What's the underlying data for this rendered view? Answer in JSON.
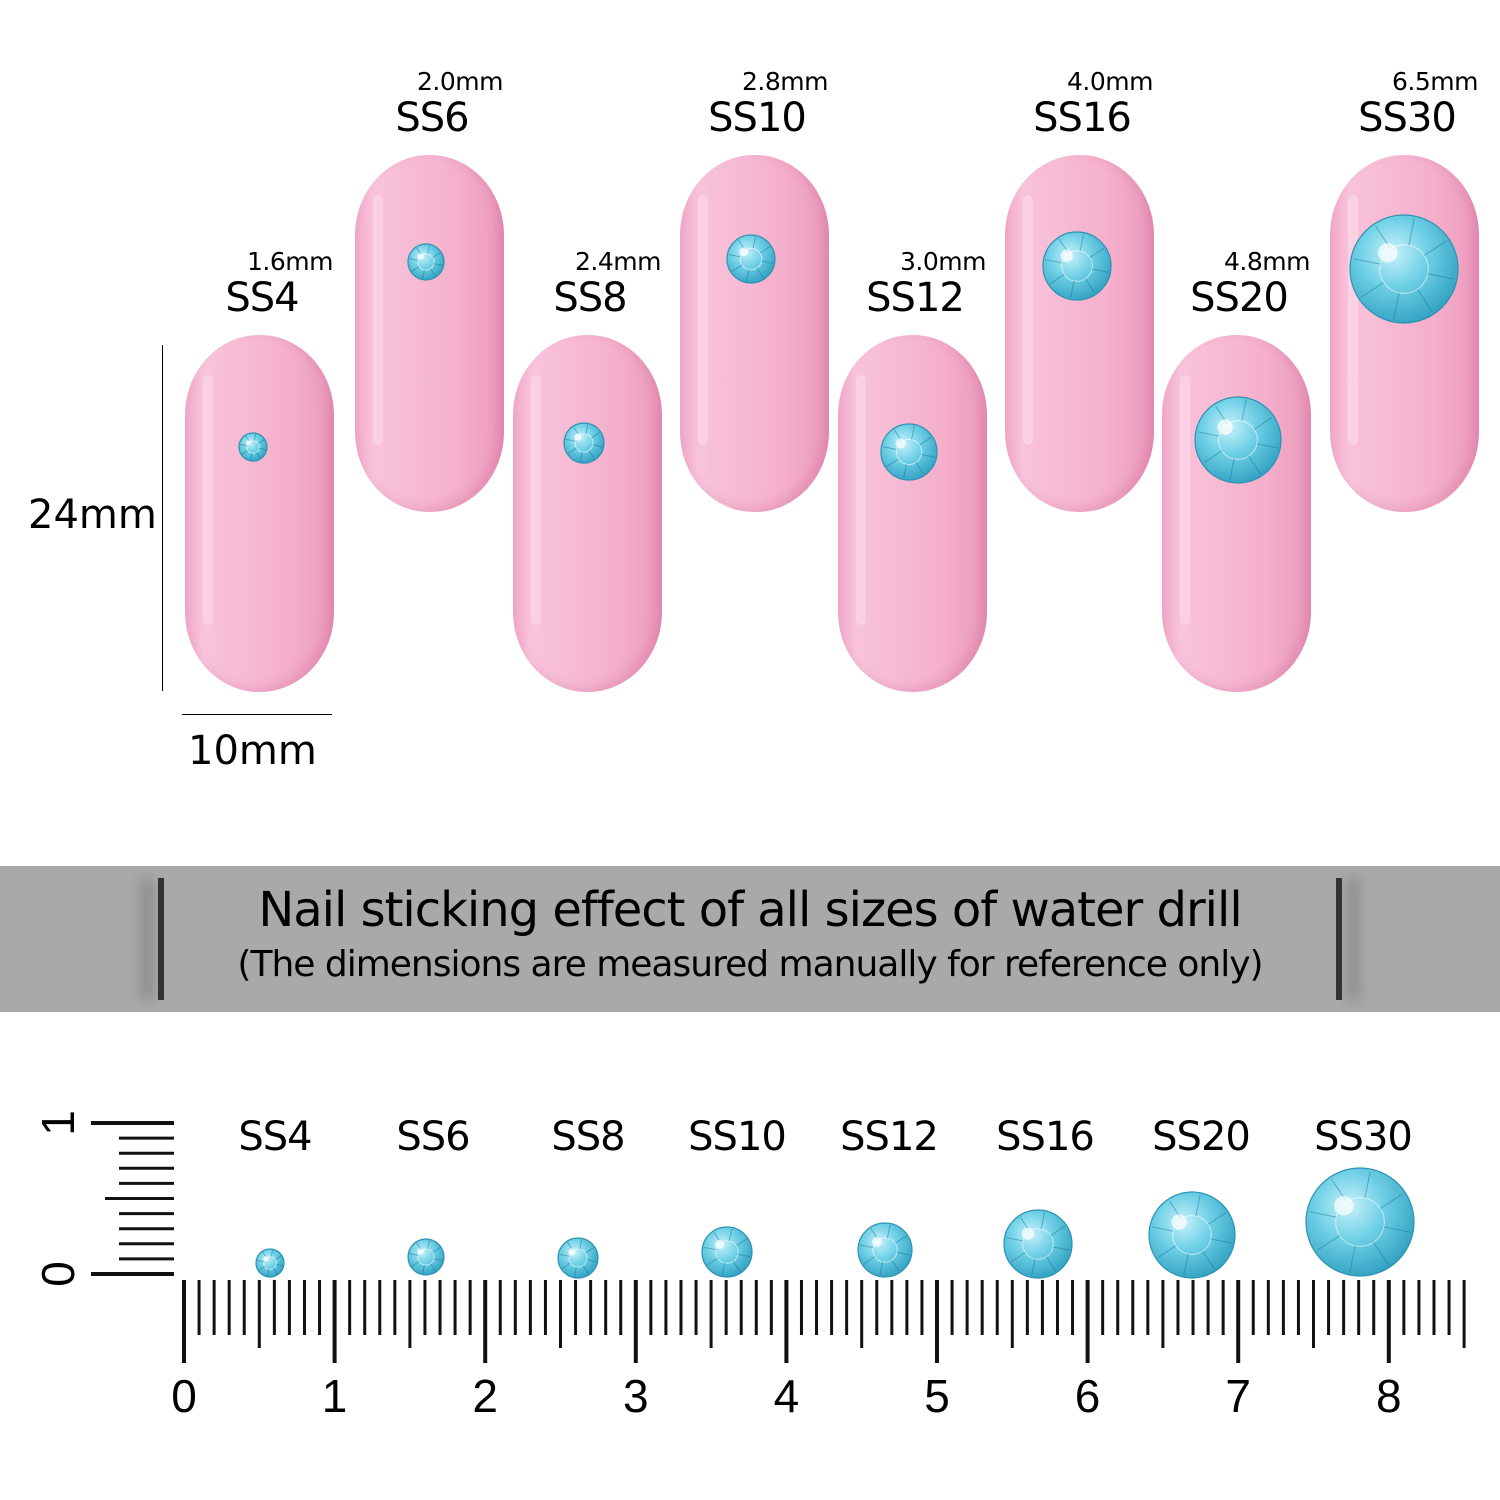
{
  "nails": [
    {
      "size": "SS4",
      "mm": "1.6mm",
      "row": "low"
    },
    {
      "size": "SS6",
      "mm": "2.0mm",
      "row": "high"
    },
    {
      "size": "SS8",
      "mm": "2.4mm",
      "row": "low"
    },
    {
      "size": "SS10",
      "mm": "2.8mm",
      "row": "high"
    },
    {
      "size": "SS12",
      "mm": "3.0mm",
      "row": "low"
    },
    {
      "size": "SS16",
      "mm": "4.0mm",
      "row": "high"
    },
    {
      "size": "SS20",
      "mm": "4.8mm",
      "row": "low"
    },
    {
      "size": "SS30",
      "mm": "6.5mm",
      "row": "high"
    }
  ],
  "nail_height_label": "24mm",
  "nail_width_label": "10mm",
  "banner": {
    "title": "Nail sticking effect of all sizes of water drill",
    "subtitle": "(The dimensions are measured manually for reference only)"
  },
  "ruler": {
    "labels": [
      "SS4",
      "SS6",
      "SS8",
      "SS10",
      "SS12",
      "SS16",
      "SS20",
      "SS30"
    ],
    "ticks": [
      "0",
      "1",
      "2",
      "3",
      "4",
      "5",
      "6",
      "7",
      "8"
    ],
    "vertical_ticks": [
      "0",
      "1"
    ]
  },
  "colors": {
    "nail": "#f7bcd5",
    "gem": "#5cc6df",
    "banner": "#a9a9a9"
  }
}
